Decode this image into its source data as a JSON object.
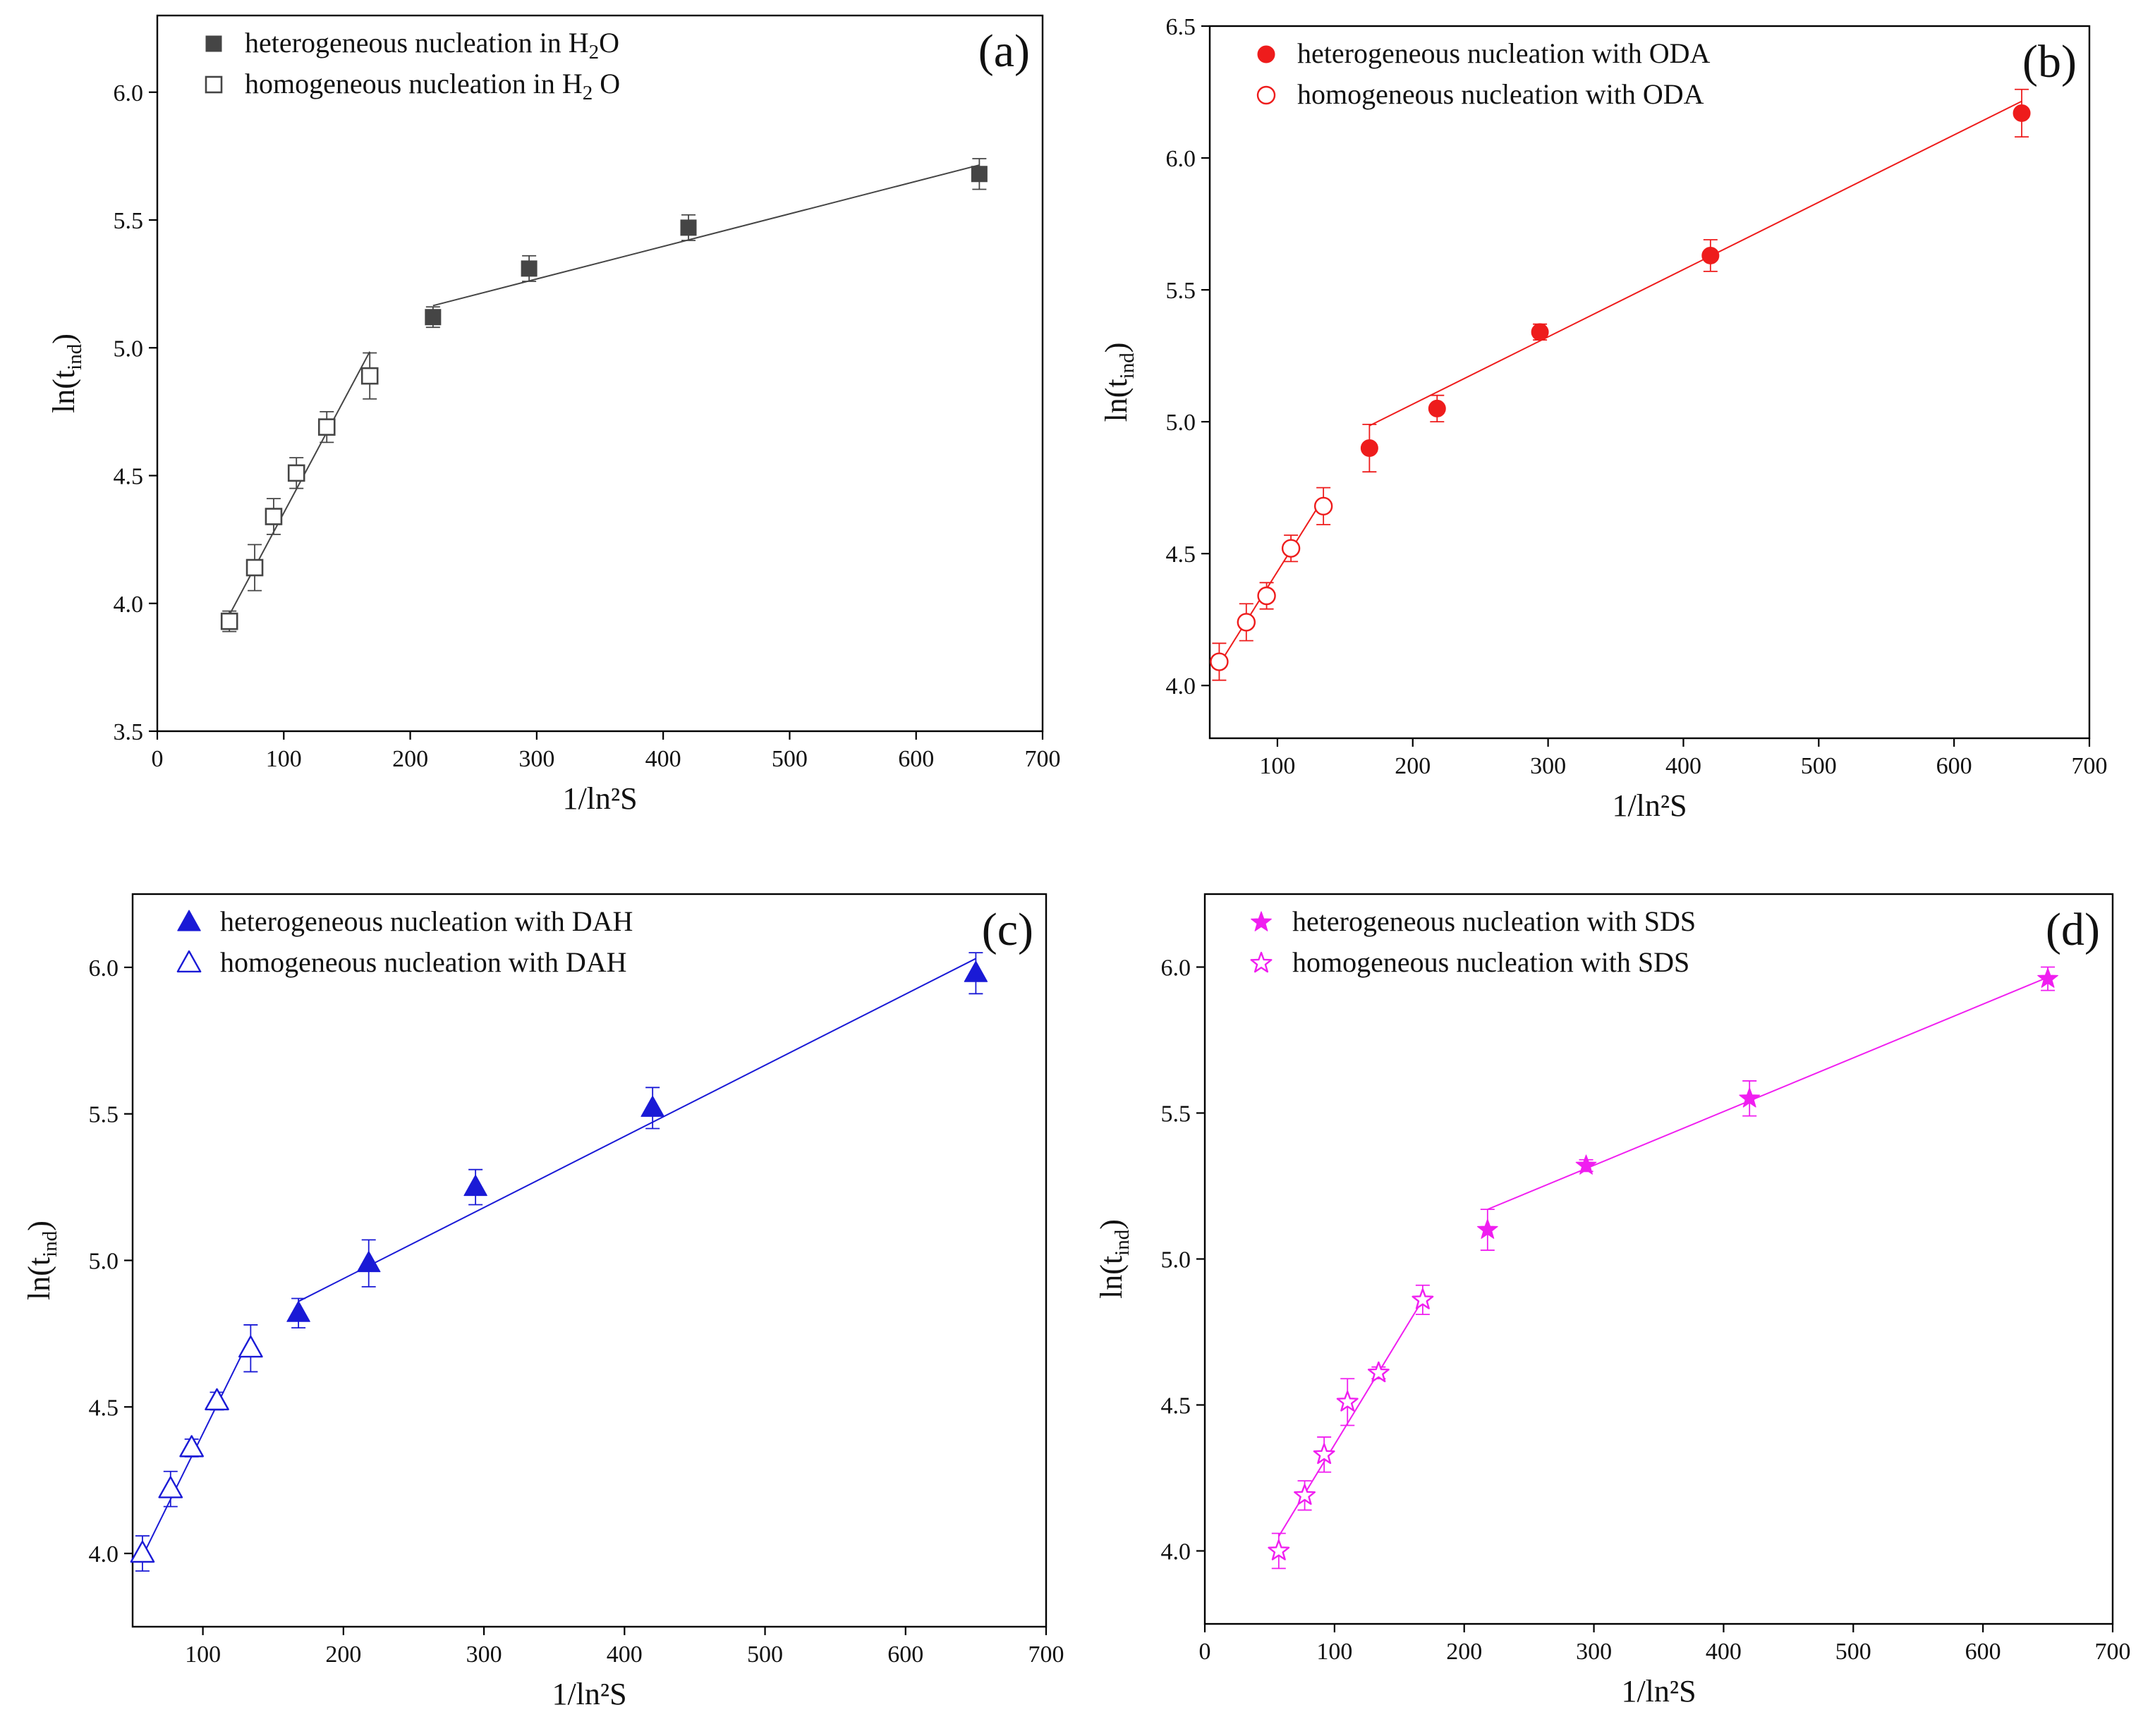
{
  "chart_data": [
    {
      "type": "scatter",
      "panel_label": "(a)",
      "color": "#454545",
      "marker": "square",
      "xlabel": "1/ln²S",
      "ylabel": "ln(t_ind)",
      "xlim": [
        0,
        700
      ],
      "ylim": [
        3.5,
        6.3
      ],
      "xticks": [
        0,
        100,
        200,
        300,
        400,
        500,
        600,
        700
      ],
      "yticks": [
        3.5,
        4.0,
        4.5,
        5.0,
        5.5,
        6.0
      ],
      "legend_position": "top-left",
      "series": [
        {
          "name": "heterogeneous nucleation in H₂O",
          "legend_main": "heterogeneous nucleation in H",
          "legend_sub": "2",
          "legend_tail": "O",
          "filled": true,
          "x": [
            218,
            294,
            420,
            650
          ],
          "y": [
            5.12,
            5.31,
            5.47,
            5.68
          ],
          "err": [
            0.04,
            0.05,
            0.05,
            0.06
          ],
          "fit": {
            "x": [
              218,
              650
            ],
            "y": [
              5.165,
              5.715
            ]
          }
        },
        {
          "name": "homogeneous nucleation in H₂ O",
          "legend_main": "homogeneous nucleation in H",
          "legend_sub": "2",
          "legend_tail": " O",
          "filled": false,
          "x": [
            57,
            77,
            92,
            110,
            134,
            168
          ],
          "y": [
            3.93,
            4.14,
            4.34,
            4.51,
            4.69,
            4.89
          ],
          "err": [
            0.04,
            0.09,
            0.07,
            0.06,
            0.06,
            0.09
          ],
          "fit": {
            "x": [
              57,
              168
            ],
            "y": [
              3.955,
              4.985
            ]
          }
        }
      ]
    },
    {
      "type": "scatter",
      "panel_label": "(b)",
      "color": "#ee1c1c",
      "marker": "circle",
      "xlabel": "1/ln²S",
      "ylabel": "ln(t_ind)",
      "xlim": [
        50,
        700
      ],
      "ylim": [
        3.8,
        6.5
      ],
      "xticks": [
        100,
        200,
        300,
        400,
        500,
        600,
        700
      ],
      "yticks": [
        4.0,
        4.5,
        5.0,
        5.5,
        6.0,
        6.5
      ],
      "legend_position": "top-left",
      "series": [
        {
          "name": "heterogeneous nucleation with ODA",
          "legend_main": "heterogeneous nucleation with ODA",
          "legend_sub": "",
          "legend_tail": "",
          "filled": true,
          "x": [
            168,
            218,
            294,
            420,
            650
          ],
          "y": [
            4.9,
            5.05,
            5.34,
            5.63,
            6.17
          ],
          "err": [
            0.09,
            0.05,
            0.03,
            0.06,
            0.09
          ],
          "fit": {
            "x": [
              168,
              650
            ],
            "y": [
              4.985,
              6.215
            ]
          }
        },
        {
          "name": "homogeneous nucleation with ODA",
          "legend_main": "homogeneous nucleation with ODA",
          "legend_sub": "",
          "legend_tail": "",
          "filled": false,
          "x": [
            57,
            77,
            92,
            110,
            134
          ],
          "y": [
            4.09,
            4.24,
            4.34,
            4.52,
            4.68
          ],
          "err": [
            0.07,
            0.07,
            0.05,
            0.05,
            0.07
          ],
          "fit": {
            "x": [
              57,
              134
            ],
            "y": [
              4.08,
              4.71
            ]
          }
        }
      ]
    },
    {
      "type": "scatter",
      "panel_label": "(c)",
      "color": "#1a1ad6",
      "marker": "triangle",
      "xlabel": "1/ln²S",
      "ylabel": "ln(t_ind)",
      "xlim": [
        50,
        700
      ],
      "ylim": [
        3.75,
        6.25
      ],
      "xticks": [
        100,
        200,
        300,
        400,
        500,
        600,
        700
      ],
      "yticks": [
        4.0,
        4.5,
        5.0,
        5.5,
        6.0
      ],
      "legend_position": "top-left",
      "series": [
        {
          "name": "heterogeneous nucleation with DAH",
          "legend_main": "heterogeneous nucleation with DAH",
          "legend_sub": "",
          "legend_tail": "",
          "filled": true,
          "x": [
            168,
            218,
            294,
            420,
            650
          ],
          "y": [
            4.82,
            4.99,
            5.25,
            5.52,
            5.98
          ],
          "err": [
            0.05,
            0.08,
            0.06,
            0.07,
            0.07
          ],
          "fit": {
            "x": [
              168,
              650
            ],
            "y": [
              4.86,
              6.03
            ]
          }
        },
        {
          "name": "homogeneous nucleation with DAH",
          "legend_main": "homogeneous nucleation with DAH",
          "legend_sub": "",
          "legend_tail": "",
          "filled": false,
          "x": [
            57,
            77,
            92,
            110,
            134
          ],
          "y": [
            4.0,
            4.22,
            4.36,
            4.52,
            4.7
          ],
          "err": [
            0.06,
            0.06,
            0.03,
            0.03,
            0.08
          ],
          "fit": {
            "x": [
              57,
              134
            ],
            "y": [
              3.99,
              4.74
            ]
          }
        }
      ]
    },
    {
      "type": "scatter",
      "panel_label": "(d)",
      "color": "#f01ef0",
      "marker": "star",
      "xlabel": "1/ln²S",
      "ylabel": "ln(t_ind)",
      "xlim": [
        0,
        700
      ],
      "ylim": [
        3.75,
        6.25
      ],
      "xticks": [
        0,
        100,
        200,
        300,
        400,
        500,
        600,
        700
      ],
      "yticks": [
        4.0,
        4.5,
        5.0,
        5.5,
        6.0
      ],
      "legend_position": "top-left",
      "series": [
        {
          "name": "heterogeneous nucleation with SDS",
          "legend_main": "heterogeneous nucleation with SDS",
          "legend_sub": "",
          "legend_tail": "",
          "filled": true,
          "x": [
            218,
            294,
            420,
            650
          ],
          "y": [
            5.1,
            5.32,
            5.55,
            5.96
          ],
          "err": [
            0.07,
            0.02,
            0.06,
            0.04
          ],
          "fit": {
            "x": [
              218,
              650
            ],
            "y": [
              5.17,
              5.965
            ]
          }
        },
        {
          "name": "homogeneous nucleation with  SDS",
          "legend_main": "homogeneous nucleation with  SDS",
          "legend_sub": "",
          "legend_tail": "",
          "filled": false,
          "x": [
            57,
            77,
            92,
            110,
            134,
            168
          ],
          "y": [
            4.0,
            4.19,
            4.33,
            4.51,
            4.61,
            4.86
          ],
          "err": [
            0.06,
            0.05,
            0.06,
            0.08,
            0.02,
            0.05
          ],
          "fit": {
            "x": [
              57,
              168
            ],
            "y": [
              4.05,
              4.86
            ]
          }
        }
      ]
    }
  ]
}
